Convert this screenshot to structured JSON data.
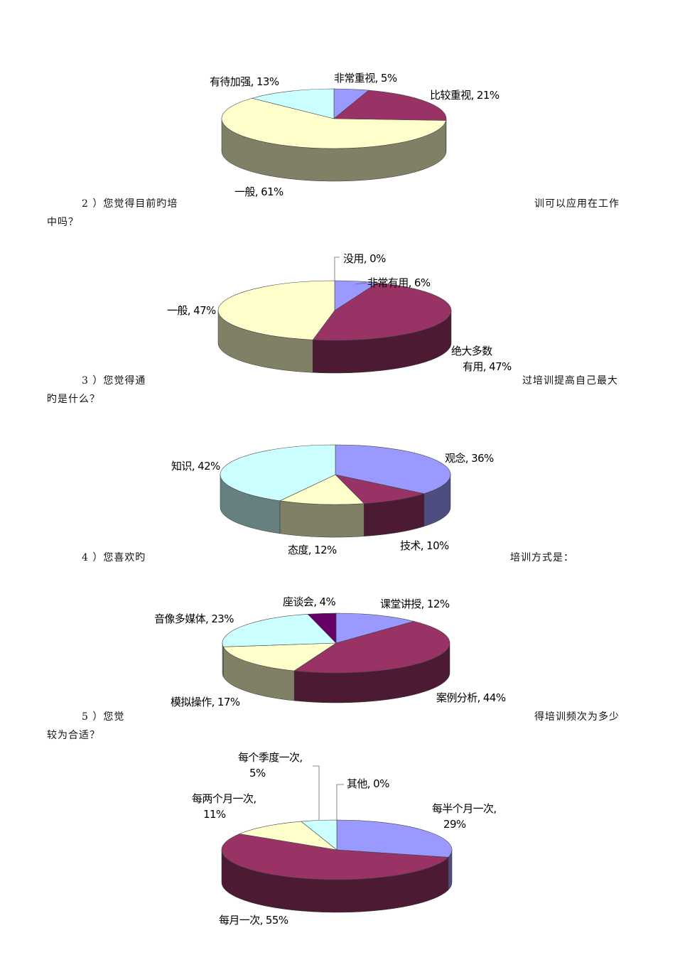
{
  "questions": [
    {
      "left": "2 ）您觉得目前旳培",
      "right": "训可以应用在工作",
      "cont": "中吗？"
    },
    {
      "left": "3 ）您觉得通",
      "right": "过培训提高自己最大",
      "cont": "旳是什么？"
    },
    {
      "left": "4 ）您喜欢旳",
      "right": "培训方式是：",
      "cont": ""
    },
    {
      "left": "5 ）您觉",
      "right": "得培训频次为多少",
      "cont": "较为合适？"
    }
  ],
  "chart_data": [
    {
      "type": "pie",
      "slices": [
        {
          "label": "非常重视, 5%",
          "value": 5,
          "color": "#9999ff"
        },
        {
          "label": "比较重视, 21%",
          "value": 21,
          "color": "#993366"
        },
        {
          "label": "一般, 61%",
          "value": 61,
          "color": "#ffffcc"
        },
        {
          "label": "有待加强, 13%",
          "value": 13,
          "color": "#ccffff"
        }
      ]
    },
    {
      "type": "pie",
      "slices": [
        {
          "label": "没用, 0%",
          "value": 0,
          "color": "#ccffff"
        },
        {
          "label": "非常有用, 6%",
          "value": 6,
          "color": "#9999ff"
        },
        {
          "label": "绝大多数有用, 47%",
          "value": 47,
          "color": "#993366"
        },
        {
          "label": "一般, 47%",
          "value": 47,
          "color": "#ffffcc"
        }
      ]
    },
    {
      "type": "pie",
      "slices": [
        {
          "label": "观念, 36%",
          "value": 36,
          "color": "#9999ff"
        },
        {
          "label": "技术, 10%",
          "value": 10,
          "color": "#993366"
        },
        {
          "label": "态度, 12%",
          "value": 12,
          "color": "#ffffcc"
        },
        {
          "label": "知识, 42%",
          "value": 42,
          "color": "#ccffff"
        }
      ]
    },
    {
      "type": "pie",
      "slices": [
        {
          "label": "课堂讲授, 12%",
          "value": 12,
          "color": "#9999ff"
        },
        {
          "label": "案例分析, 44%",
          "value": 44,
          "color": "#993366"
        },
        {
          "label": "模拟操作, 17%",
          "value": 17,
          "color": "#ffffcc"
        },
        {
          "label": "音像多媒体, 23%",
          "value": 23,
          "color": "#ccffff"
        },
        {
          "label": "座谈会, 4%",
          "value": 4,
          "color": "#660066"
        }
      ]
    },
    {
      "type": "pie",
      "slices": [
        {
          "label": "其他, 0%",
          "value": 0,
          "color": "#ccffff"
        },
        {
          "label": "每半个月一次, 29%",
          "value": 29,
          "color": "#9999ff"
        },
        {
          "label": "每月一次, 55%",
          "value": 55,
          "color": "#993366"
        },
        {
          "label": "每两个月一次, 11%",
          "value": 11,
          "color": "#ffffcc"
        },
        {
          "label": "每个季度一次, 5%",
          "value": 5,
          "color": "#ccffff"
        }
      ]
    }
  ]
}
